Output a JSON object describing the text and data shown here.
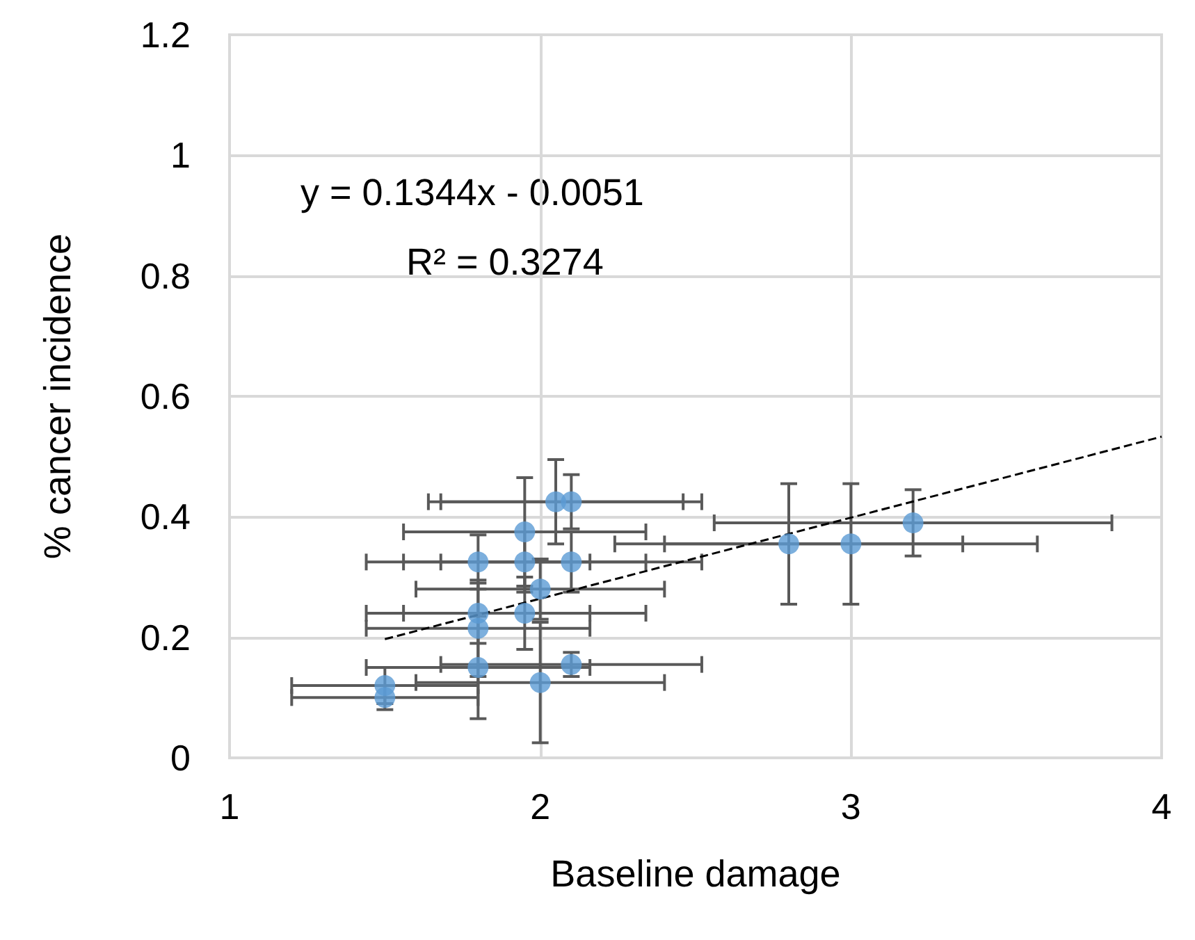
{
  "chart_data": {
    "type": "scatter",
    "xlabel": "Baseline damage",
    "ylabel": "% cancer incidence",
    "xlim": [
      1,
      4
    ],
    "xticks": [
      1,
      2,
      3,
      4
    ],
    "ylim": [
      0,
      1.2
    ],
    "yticks": [
      0,
      0.2,
      0.4,
      0.6,
      0.8,
      1,
      1.2
    ],
    "grid": true,
    "marker": "circle",
    "annotations": [
      "y = 0.1344x - 0.0051",
      "R² = 0.3274"
    ],
    "series": [
      {
        "color": "#5b9bd5",
        "x": [
          1.5,
          1.5,
          1.8,
          2.0,
          2.1,
          1.8,
          1.8,
          1.95,
          2.0,
          1.8,
          1.95,
          2.1,
          1.95,
          2.05,
          2.1,
          2.8,
          3.0,
          3.2
        ],
        "values": [
          0.12,
          0.1,
          0.15,
          0.125,
          0.155,
          0.215,
          0.24,
          0.24,
          0.28,
          0.325,
          0.325,
          0.325,
          0.375,
          0.425,
          0.425,
          0.355,
          0.355,
          0.39
        ],
        "errors": [
          0.03,
          0.02,
          0.085,
          0.1,
          0.02,
          0.08,
          0.05,
          0.06,
          0.05,
          0.045,
          0.05,
          0.05,
          0.09,
          0.07,
          0.045,
          0.1,
          0.1,
          0.055
        ],
        "xerrors": [
          0.3,
          0.3,
          0.36,
          0.4,
          0.42,
          0.36,
          0.36,
          0.39,
          0.4,
          0.36,
          0.39,
          0.42,
          0.39,
          0.41,
          0.42,
          0.56,
          0.6,
          0.64
        ]
      },
      {
        "type": "line",
        "color": "#000000",
        "line_style": "dashed",
        "marker": "none",
        "x": [
          1.5,
          4
        ],
        "values": [
          0.197,
          0.533
        ]
      }
    ]
  }
}
